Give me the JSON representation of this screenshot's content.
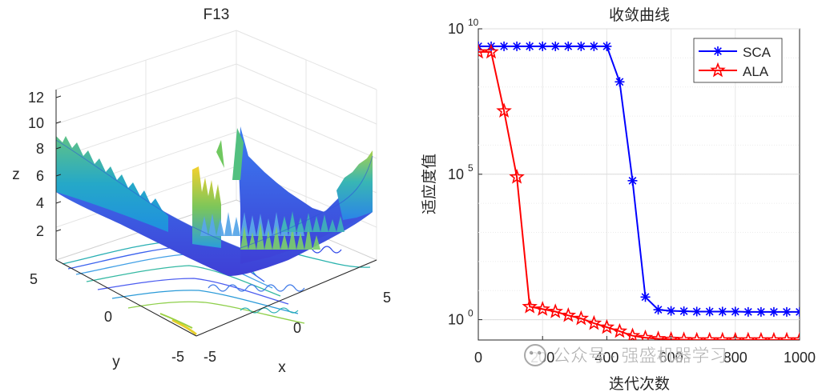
{
  "chart_data": [
    {
      "type": "surface3d",
      "title": "F13",
      "xlabel": "x",
      "ylabel": "y",
      "zlabel": "z",
      "x_ticks": [
        "-5",
        "0",
        "5"
      ],
      "y_ticks": [
        "-5",
        "0",
        "5"
      ],
      "z_ticks": [
        "2",
        "4",
        "6",
        "8",
        "10",
        "12"
      ],
      "xlim": [
        -5,
        5
      ],
      "ylim": [
        -5,
        5
      ],
      "zlim": [
        0,
        13
      ],
      "grid": true,
      "colormap": "parula",
      "contour_on_floor": true
    },
    {
      "type": "line",
      "yscale": "log",
      "title": "收敛曲线",
      "xlabel": "迭代次数",
      "ylabel": "适应度值",
      "xlim": [
        0,
        1000
      ],
      "x_ticks": [
        "0",
        "200",
        "400",
        "600",
        "800",
        "1000"
      ],
      "y_ticks": [
        {
          "base": "10",
          "exp": "0",
          "value": 1
        },
        {
          "base": "10",
          "exp": "5",
          "value": 100000
        },
        {
          "base": "10",
          "exp": "10",
          "value": 10000000000
        }
      ],
      "ylim": [
        0.2,
        10000000000
      ],
      "grid": true,
      "legend_position": "top-right",
      "x": [
        0,
        40,
        80,
        120,
        160,
        200,
        240,
        280,
        320,
        360,
        400,
        440,
        480,
        520,
        560,
        600,
        640,
        680,
        720,
        760,
        800,
        840,
        880,
        920,
        960,
        1000
      ],
      "series": [
        {
          "name": "SCA",
          "color": "#0000ff",
          "marker": "asterisk",
          "values": [
            2500000000,
            2500000000,
            2500000000,
            2500000000,
            2500000000,
            2500000000,
            2500000000,
            2500000000,
            2500000000,
            2500000000,
            2500000000,
            150000000,
            60000,
            6,
            2.2,
            2.0,
            1.95,
            1.9,
            1.9,
            1.9,
            1.9,
            1.85,
            1.85,
            1.85,
            1.85,
            1.85
          ]
        },
        {
          "name": "ALA",
          "color": "#ff0000",
          "marker": "pentagram",
          "values": [
            1600000000,
            1600000000,
            15000000,
            80000,
            2.8,
            2.3,
            1.9,
            1.4,
            1.1,
            0.75,
            0.55,
            0.4,
            0.28,
            0.24,
            0.22,
            0.21,
            0.205,
            0.2,
            0.2,
            0.2,
            0.2,
            0.2,
            0.2,
            0.2,
            0.2,
            0.2
          ]
        }
      ],
      "watermark": "公众号 · 强盛机器学习"
    }
  ]
}
